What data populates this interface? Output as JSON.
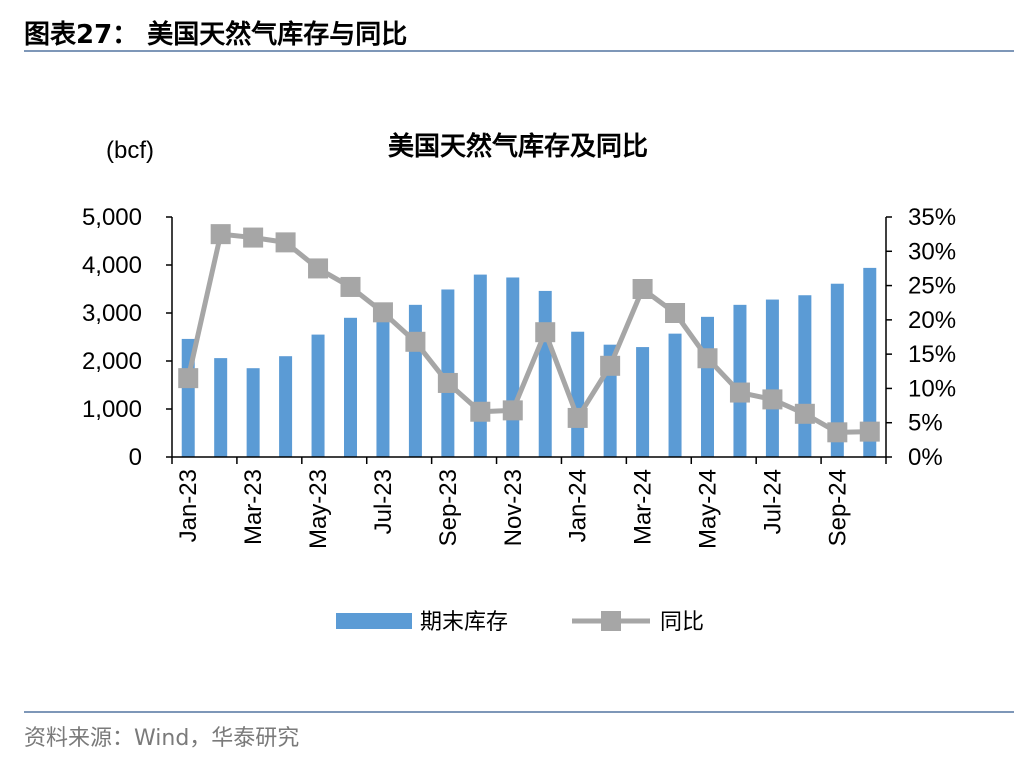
{
  "header": {
    "figure_title": "图表27：  美国天然气库存与同比"
  },
  "footer": {
    "source": "资料来源：Wind，华泰研究"
  },
  "chart_data": {
    "type": "bar",
    "title": "美国天然气库存及同比",
    "unit_label": "(bcf)",
    "x": [
      "Jan-23",
      "Feb-23",
      "Mar-23",
      "Apr-23",
      "May-23",
      "Jun-23",
      "Jul-23",
      "Aug-23",
      "Sep-23",
      "Oct-23",
      "Nov-23",
      "Dec-23",
      "Jan-24",
      "Feb-24",
      "Mar-24",
      "Apr-24",
      "May-24",
      "Jun-24",
      "Jul-24",
      "Aug-24",
      "Sep-24",
      "Oct-24"
    ],
    "x_tick_labels": [
      "Jan-23",
      "Mar-23",
      "May-23",
      "Jul-23",
      "Sep-23",
      "Nov-23",
      "Jan-24",
      "Mar-24",
      "May-24",
      "Jul-24",
      "Sep-24"
    ],
    "series": [
      {
        "name": "期末库存",
        "kind": "bar",
        "axis": "left",
        "color": "#5b9bd5",
        "values": [
          2460,
          2060,
          1850,
          2100,
          2550,
          2900,
          3000,
          3170,
          3490,
          3800,
          3740,
          3460,
          2610,
          2340,
          2290,
          2570,
          2920,
          3170,
          3280,
          3370,
          3610,
          3940
        ]
      },
      {
        "name": "同比",
        "kind": "line",
        "axis": "right",
        "color": "#a6a6a6",
        "values": [
          11.5,
          32.5,
          32.0,
          31.3,
          27.5,
          24.8,
          21.1,
          16.8,
          10.8,
          6.6,
          6.8,
          18.2,
          5.7,
          13.3,
          24.5,
          21.0,
          14.4,
          9.4,
          8.4,
          6.3,
          3.6,
          3.7
        ]
      }
    ],
    "y_left": {
      "ylim": [
        0,
        5000
      ],
      "ticks": [
        0,
        1000,
        2000,
        3000,
        4000,
        5000
      ],
      "tick_labels": [
        "0",
        "1,000",
        "2,000",
        "3,000",
        "4,000",
        "5,000"
      ]
    },
    "y_right": {
      "ylim": [
        0,
        35
      ],
      "ticks": [
        0,
        5,
        10,
        15,
        20,
        25,
        30,
        35
      ],
      "tick_labels": [
        "0%",
        "5%",
        "10%",
        "15%",
        "20%",
        "25%",
        "30%",
        "35%"
      ]
    },
    "legend": {
      "position": "bottom",
      "entries": [
        "期末库存",
        "同比"
      ]
    },
    "grid": false
  }
}
